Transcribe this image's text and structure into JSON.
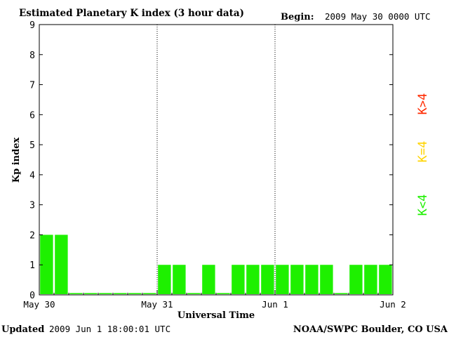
{
  "header": {
    "title": "Estimated Planetary K index (3 hour data)",
    "begin_label": "Begin:",
    "begin_value": "2009 May 30 0000 UTC"
  },
  "footer": {
    "updated_label": "Updated",
    "updated_value": "2009 Jun  1 18:00:01 UTC",
    "source": "NOAA/SWPC Boulder, CO USA"
  },
  "legend": {
    "high": {
      "label": "K>4",
      "color": "#ff2a00"
    },
    "mid": {
      "label": "K=4",
      "color": "#ffd400"
    },
    "low": {
      "label": "K<4",
      "color": "#1ef000"
    }
  },
  "chart_data": {
    "type": "bar",
    "title": "Estimated Planetary K index (3 hour data)",
    "xlabel": "Universal Time",
    "ylabel": "Kp index",
    "ylim": [
      0,
      9
    ],
    "y_ticks": [
      0,
      1,
      2,
      3,
      4,
      5,
      6,
      7,
      8,
      9
    ],
    "x_ticks": [
      "May 30",
      "May 31",
      "Jun 1",
      "Jun 2"
    ],
    "interval_hours": 3,
    "values": [
      2,
      2,
      0,
      0,
      0,
      0,
      0,
      0,
      1,
      1,
      0,
      1,
      0,
      1,
      1,
      1,
      1,
      1,
      1,
      1,
      0,
      1,
      1,
      1
    ],
    "bar_color": "#1ef000",
    "day_divider": "dotted",
    "grid": false
  }
}
